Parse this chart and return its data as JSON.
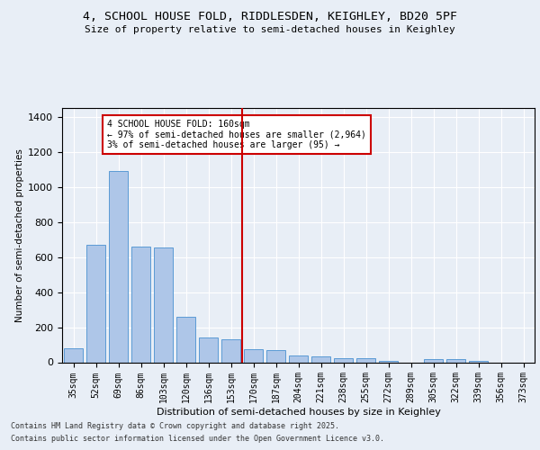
{
  "title_line1": "4, SCHOOL HOUSE FOLD, RIDDLESDEN, KEIGHLEY, BD20 5PF",
  "title_line2": "Size of property relative to semi-detached houses in Keighley",
  "xlabel": "Distribution of semi-detached houses by size in Keighley",
  "ylabel": "Number of semi-detached properties",
  "categories": [
    "35sqm",
    "52sqm",
    "69sqm",
    "86sqm",
    "103sqm",
    "120sqm",
    "136sqm",
    "153sqm",
    "170sqm",
    "187sqm",
    "204sqm",
    "221sqm",
    "238sqm",
    "255sqm",
    "272sqm",
    "289sqm",
    "305sqm",
    "322sqm",
    "339sqm",
    "356sqm",
    "373sqm"
  ],
  "values": [
    80,
    670,
    1090,
    660,
    655,
    260,
    140,
    130,
    75,
    70,
    38,
    35,
    22,
    22,
    8,
    0,
    18,
    18,
    8,
    0,
    0
  ],
  "bar_color": "#aec6e8",
  "bar_edge_color": "#5b9bd5",
  "vline_color": "#cc0000",
  "annotation_title": "4 SCHOOL HOUSE FOLD: 160sqm",
  "annotation_line1": "← 97% of semi-detached houses are smaller (2,964)",
  "annotation_line2": "3% of semi-detached houses are larger (95) →",
  "annotation_box_color": "#cc0000",
  "ylim": [
    0,
    1450
  ],
  "yticks": [
    0,
    200,
    400,
    600,
    800,
    1000,
    1200,
    1400
  ],
  "footer_line1": "Contains HM Land Registry data © Crown copyright and database right 2025.",
  "footer_line2": "Contains public sector information licensed under the Open Government Licence v3.0.",
  "bg_color": "#e8eef6",
  "plot_bg_color": "#e8eef6"
}
